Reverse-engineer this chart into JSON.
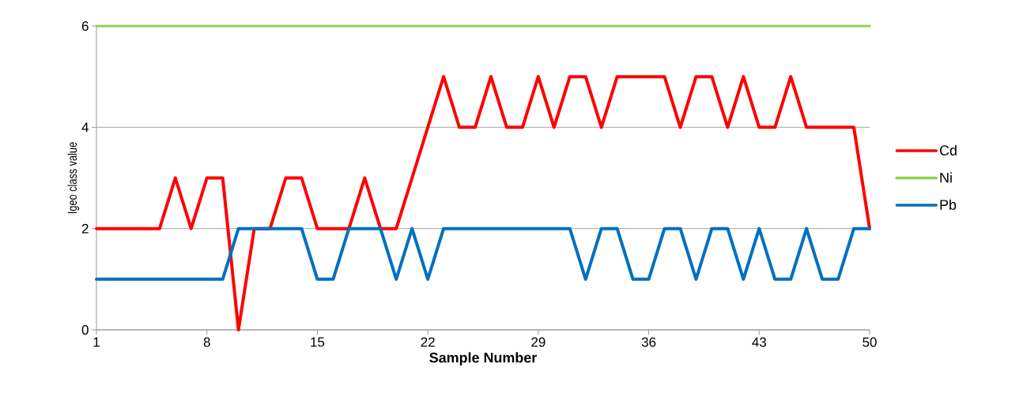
{
  "chart_data": {
    "type": "line",
    "xlabel": "Sample Number",
    "ylabel": "Igeo class value",
    "x": [
      1,
      2,
      3,
      4,
      5,
      6,
      7,
      8,
      9,
      10,
      11,
      12,
      13,
      14,
      15,
      16,
      17,
      18,
      19,
      20,
      21,
      22,
      23,
      24,
      25,
      26,
      27,
      28,
      29,
      30,
      31,
      32,
      33,
      34,
      35,
      36,
      37,
      38,
      39,
      40,
      41,
      42,
      43,
      44,
      45,
      46,
      47,
      48,
      49,
      50
    ],
    "series": [
      {
        "name": "Cd",
        "color": "#ff0000",
        "values": [
          2,
          2,
          2,
          2,
          2,
          3,
          2,
          3,
          3,
          0,
          2,
          2,
          3,
          3,
          2,
          2,
          2,
          3,
          2,
          2,
          3,
          4,
          5,
          4,
          4,
          5,
          4,
          4,
          5,
          4,
          5,
          5,
          4,
          5,
          5,
          5,
          5,
          4,
          5,
          5,
          4,
          5,
          4,
          4,
          5,
          4,
          4,
          4,
          4,
          2
        ]
      },
      {
        "name": "Ni",
        "color": "#92d050",
        "values": [
          6,
          6,
          6,
          6,
          6,
          6,
          6,
          6,
          6,
          6,
          6,
          6,
          6,
          6,
          6,
          6,
          6,
          6,
          6,
          6,
          6,
          6,
          6,
          6,
          6,
          6,
          6,
          6,
          6,
          6,
          6,
          6,
          6,
          6,
          6,
          6,
          6,
          6,
          6,
          6,
          6,
          6,
          6,
          6,
          6,
          6,
          6,
          6,
          6,
          6
        ]
      },
      {
        "name": "Pb",
        "color": "#0070c0",
        "values": [
          1,
          1,
          1,
          1,
          1,
          1,
          1,
          1,
          1,
          2,
          2,
          2,
          2,
          2,
          1,
          1,
          2,
          2,
          2,
          1,
          2,
          1,
          2,
          2,
          2,
          2,
          2,
          2,
          2,
          2,
          2,
          1,
          2,
          2,
          1,
          1,
          2,
          2,
          1,
          2,
          2,
          1,
          2,
          1,
          1,
          2,
          1,
          1,
          2,
          2
        ]
      }
    ],
    "xlim": [
      1,
      50
    ],
    "xticks": [
      1,
      8,
      15,
      22,
      29,
      36,
      43,
      50
    ],
    "ylim": [
      0,
      6
    ],
    "yticks": [
      0,
      2,
      4,
      6
    ],
    "grid": "y",
    "legend": "right",
    "marker": "none",
    "line_style": "solid"
  }
}
